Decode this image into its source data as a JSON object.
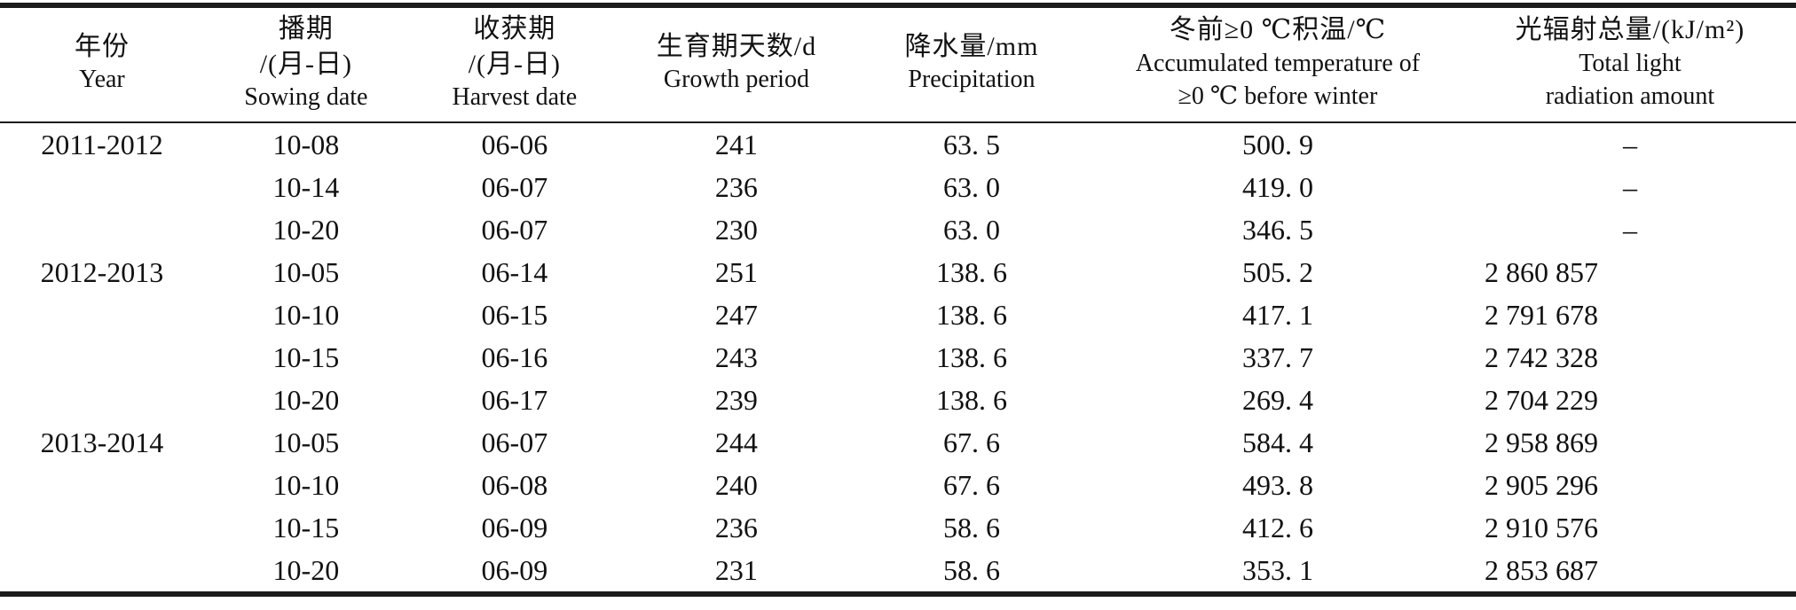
{
  "table": {
    "columns": [
      {
        "id": "year",
        "lines_zh": [
          "年份"
        ],
        "lines_en": [
          "Year"
        ]
      },
      {
        "id": "sowing",
        "lines_zh": [
          "播期",
          "/(月-日)"
        ],
        "lines_en": [
          "Sowing date"
        ]
      },
      {
        "id": "harvest",
        "lines_zh": [
          "收获期",
          "/(月-日)"
        ],
        "lines_en": [
          "Harvest date"
        ]
      },
      {
        "id": "growth",
        "lines_zh": [
          "生育期天数/d"
        ],
        "lines_en": [
          "Growth period"
        ]
      },
      {
        "id": "precip",
        "lines_zh": [
          "降水量/mm"
        ],
        "lines_en": [
          "Precipitation"
        ]
      },
      {
        "id": "acctemp",
        "lines_zh": [
          "冬前≥0 ℃积温/℃"
        ],
        "lines_en": [
          "Accumulated temperature of",
          "≥0 ℃ before winter"
        ]
      },
      {
        "id": "radiation",
        "lines_zh": [
          "光辐射总量/(kJ/m²)"
        ],
        "lines_en": [
          "Total light",
          "radiation amount"
        ]
      }
    ],
    "rows": [
      [
        "2011-2012",
        "10-08",
        "06-06",
        "241",
        "63. 5",
        "500. 9",
        "–"
      ],
      [
        "",
        "10-14",
        "06-07",
        "236",
        "63. 0",
        "419. 0",
        "–"
      ],
      [
        "",
        "10-20",
        "06-07",
        "230",
        "63. 0",
        "346. 5",
        "–"
      ],
      [
        "2012-2013",
        "10-05",
        "06-14",
        "251",
        "138. 6",
        "505. 2",
        "2 860 857"
      ],
      [
        "",
        "10-10",
        "06-15",
        "247",
        "138. 6",
        "417. 1",
        "2 791 678"
      ],
      [
        "",
        "10-15",
        "06-16",
        "243",
        "138. 6",
        "337. 7",
        "2 742 328"
      ],
      [
        "",
        "10-20",
        "06-17",
        "239",
        "138. 6",
        "269. 4",
        "2 704 229"
      ],
      [
        "2013-2014",
        "10-05",
        "06-07",
        "244",
        "67. 6",
        "584. 4",
        "2 958 869"
      ],
      [
        "",
        "10-10",
        "06-08",
        "240",
        "67. 6",
        "493. 8",
        "2 905 296"
      ],
      [
        "",
        "10-15",
        "06-09",
        "236",
        "58. 6",
        "412. 6",
        "2 910 576"
      ],
      [
        "",
        "10-20",
        "06-09",
        "231",
        "58. 6",
        "353. 1",
        "2 853 687"
      ]
    ],
    "missing_value_symbol": "–"
  }
}
